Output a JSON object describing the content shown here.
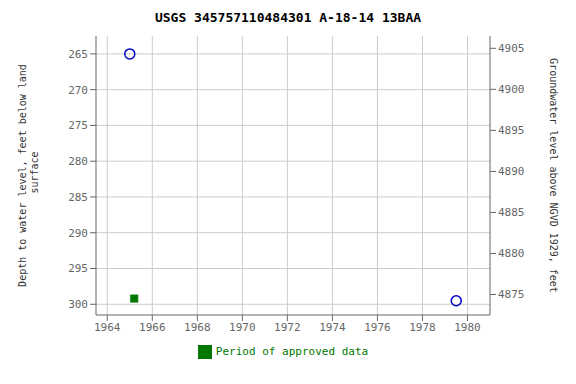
{
  "chart_data": {
    "type": "scatter",
    "title": "USGS 345757110484301 A-18-14 13BAA",
    "ylabel": "Depth to water level, feet below land\n surface",
    "y2label": "Groundwater level above NGVD 1929, feet",
    "xlim": [
      1963.5,
      1981.0
    ],
    "ylim": [
      301.5,
      262.5
    ],
    "y2lim": [
      4872.5,
      4906.5
    ],
    "xticks": [
      1964,
      1966,
      1968,
      1970,
      1972,
      1974,
      1976,
      1978,
      1980
    ],
    "yticks": [
      265,
      270,
      275,
      280,
      285,
      290,
      295,
      300
    ],
    "y2ticks": [
      4905,
      4900,
      4895,
      4890,
      4885,
      4880,
      4875
    ],
    "grid": true,
    "legend": "bottom",
    "series": [
      {
        "x": [
          1965.0,
          1979.5
        ],
        "values": [
          265.0,
          299.5
        ],
        "color": "#0000cc",
        "marker": "circle"
      },
      {
        "name": "Period of approved data",
        "x": [
          1965.2
        ],
        "values": [
          299.2
        ],
        "color": "#007700",
        "marker": "square"
      }
    ]
  }
}
